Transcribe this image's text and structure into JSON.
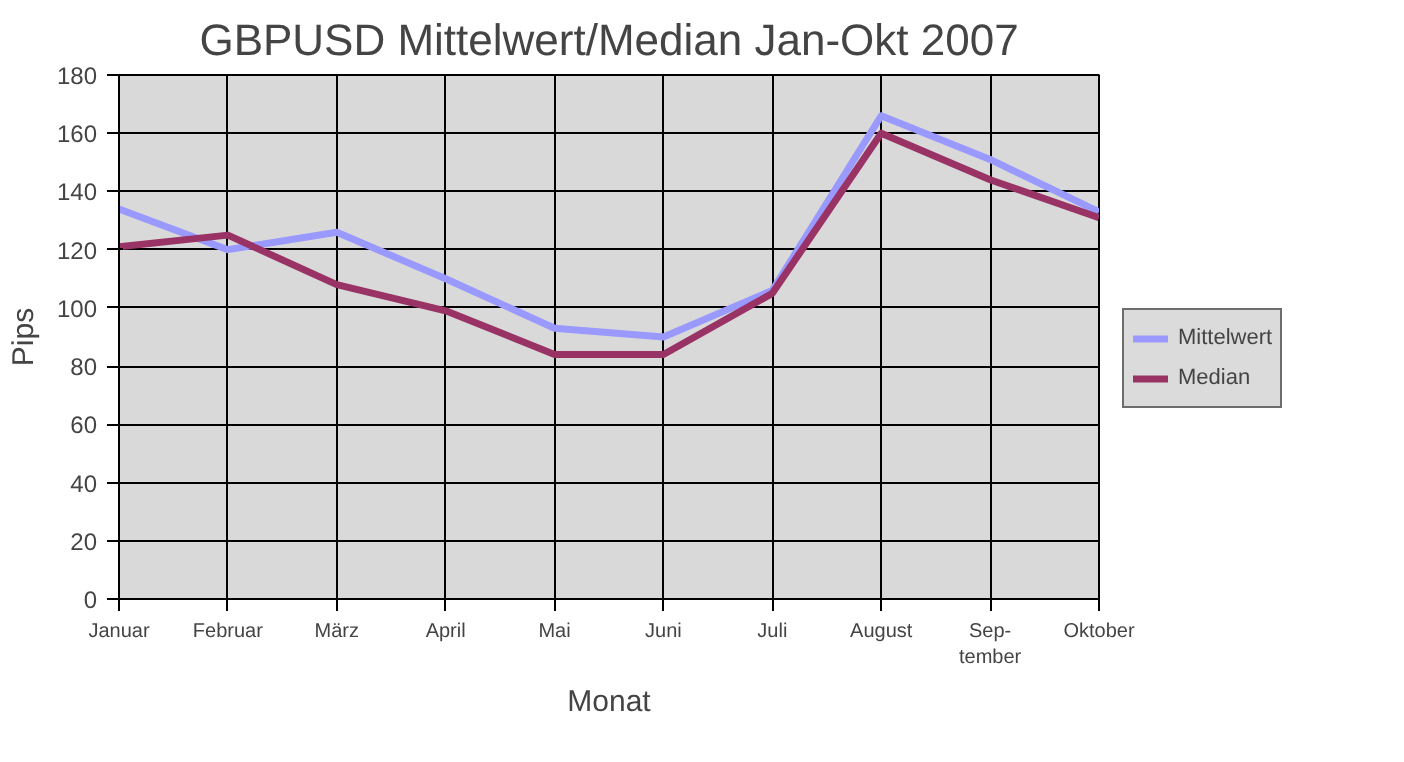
{
  "chart_data": {
    "type": "line",
    "title": "GBPUSD Mittelwert/Median Jan-Okt 2007",
    "xlabel": "Monat",
    "ylabel": "Pips",
    "categories": [
      "Januar",
      "Februar",
      "März",
      "April",
      "Mai",
      "Juni",
      "Juli",
      "August",
      "Sep-\ntember",
      "Oktober"
    ],
    "series": [
      {
        "name": "Mittelwert",
        "color": "#9999ff",
        "values": [
          134,
          120,
          126,
          110,
          93,
          90,
          106,
          166,
          151,
          133
        ]
      },
      {
        "name": "Median",
        "color": "#993366",
        "values": [
          121,
          125,
          108,
          99,
          84,
          84,
          105,
          160,
          144,
          131
        ]
      }
    ],
    "ylim": [
      0,
      180
    ],
    "yticks": [
      0,
      20,
      40,
      60,
      80,
      100,
      120,
      140,
      160,
      180
    ],
    "grid": true,
    "legend": "right",
    "marker": "none",
    "line_style": "solid"
  }
}
